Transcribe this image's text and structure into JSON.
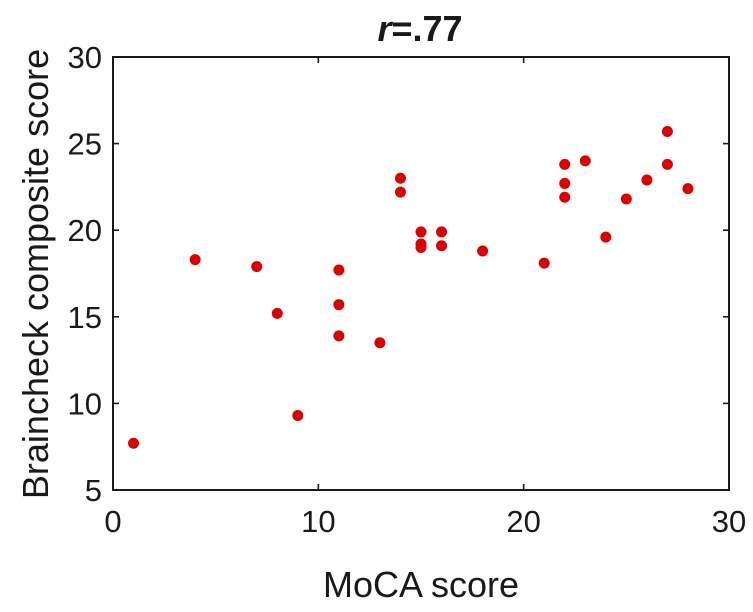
{
  "chart_data": {
    "type": "scatter",
    "title_prefix": "r",
    "title_value": "=.77",
    "xlabel": "MoCA score",
    "ylabel": "Braincheck composite score",
    "xlim": [
      0,
      30
    ],
    "ylim": [
      5,
      30
    ],
    "xticks": [
      0,
      10,
      20,
      30
    ],
    "yticks": [
      5,
      10,
      15,
      20,
      25,
      30
    ],
    "grid": false,
    "marker_color": "#dd0000",
    "points": [
      {
        "x": 1,
        "y": 7.7
      },
      {
        "x": 4,
        "y": 18.3
      },
      {
        "x": 7,
        "y": 17.9
      },
      {
        "x": 8,
        "y": 15.2
      },
      {
        "x": 9,
        "y": 9.3
      },
      {
        "x": 11,
        "y": 17.7
      },
      {
        "x": 11,
        "y": 15.7
      },
      {
        "x": 11,
        "y": 13.9
      },
      {
        "x": 13,
        "y": 13.5
      },
      {
        "x": 14,
        "y": 23.0
      },
      {
        "x": 14,
        "y": 22.2
      },
      {
        "x": 15,
        "y": 19.9
      },
      {
        "x": 15,
        "y": 19.2
      },
      {
        "x": 15,
        "y": 19.0
      },
      {
        "x": 16,
        "y": 19.9
      },
      {
        "x": 16,
        "y": 19.1
      },
      {
        "x": 18,
        "y": 18.8
      },
      {
        "x": 21,
        "y": 18.1
      },
      {
        "x": 22,
        "y": 23.8
      },
      {
        "x": 22,
        "y": 22.7
      },
      {
        "x": 22,
        "y": 21.9
      },
      {
        "x": 23,
        "y": 24.0
      },
      {
        "x": 24,
        "y": 19.6
      },
      {
        "x": 25,
        "y": 21.8
      },
      {
        "x": 26,
        "y": 22.9
      },
      {
        "x": 27,
        "y": 25.7
      },
      {
        "x": 27,
        "y": 23.8
      },
      {
        "x": 28,
        "y": 22.4
      }
    ]
  }
}
